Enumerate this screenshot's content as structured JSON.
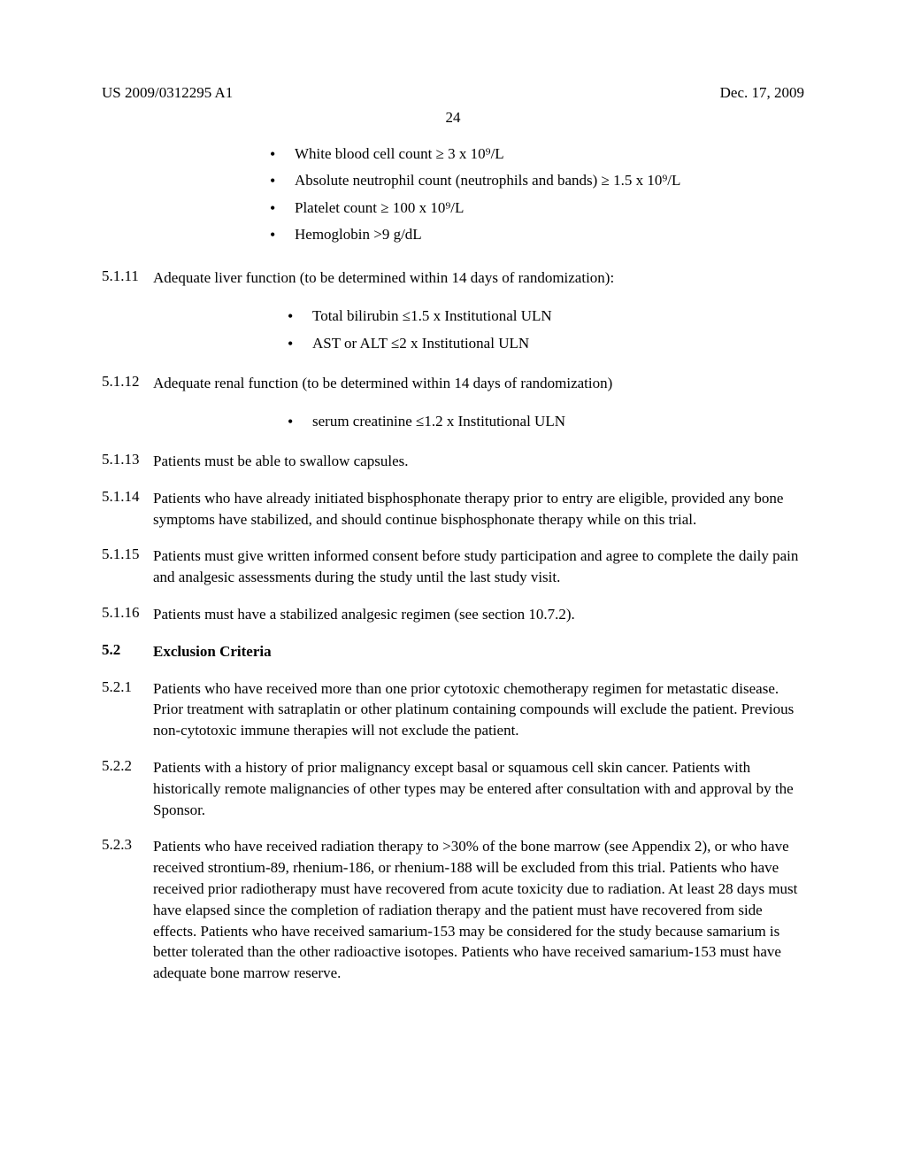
{
  "header": {
    "left": "US 2009/0312295 A1",
    "right": "Dec. 17, 2009",
    "page_number": "24"
  },
  "top_bullets": [
    "White blood cell count ≥ 3 x 10⁹/L",
    "Absolute neutrophil count (neutrophils and bands) ≥ 1.5 x 10⁹/L",
    "Platelet count ≥ 100 x 10⁹/L",
    "Hemoglobin >9 g/dL"
  ],
  "s5111": {
    "num": "5.1.11",
    "text": "Adequate liver function (to be determined within 14 days of randomization):",
    "bullets": [
      "Total bilirubin ≤1.5 x Institutional ULN",
      "AST or ALT ≤2 x Institutional ULN"
    ]
  },
  "s5112": {
    "num": "5.1.12",
    "text": "Adequate renal function (to be determined within 14 days of randomization)",
    "bullets": [
      "serum creatinine ≤1.2 x Institutional ULN"
    ]
  },
  "s5113": {
    "num": "5.1.13",
    "text": "Patients must be able to swallow capsules."
  },
  "s5114": {
    "num": "5.1.14",
    "text": "Patients who have already initiated bisphosphonate therapy prior to entry are eligible, provided any bone symptoms have stabilized, and should continue bisphosphonate therapy while on this trial."
  },
  "s5115": {
    "num": "5.1.15",
    "text": "Patients must give written informed consent before study participation and agree to complete the daily pain and analgesic assessments during the study until the last study visit."
  },
  "s5116": {
    "num": "5.1.16",
    "text": "Patients must have a stabilized analgesic regimen (see section 10.7.2)."
  },
  "s52": {
    "num": "5.2",
    "text": "Exclusion Criteria"
  },
  "s521": {
    "num": "5.2.1",
    "text": "Patients who have received more than one prior cytotoxic chemotherapy regimen for metastatic disease. Prior treatment with satraplatin or other platinum containing compounds will exclude the patient. Previous non-cytotoxic immune therapies will not exclude the patient."
  },
  "s522": {
    "num": "5.2.2",
    "text": "Patients with a history of prior malignancy except basal or squamous cell skin cancer. Patients with historically remote malignancies of other types may be entered after consultation with and approval by the Sponsor."
  },
  "s523": {
    "num": "5.2.3",
    "text": "Patients who have received radiation therapy to >30% of the bone marrow (see Appendix 2), or who have received strontium-89, rhenium-186, or rhenium-188 will be excluded from this trial. Patients who have received prior radiotherapy must have recovered from acute toxicity due to radiation. At least 28 days must have elapsed since the completion of radiation therapy and the patient must have recovered from side effects. Patients who have received samarium-153 may be considered for the study because samarium is better tolerated than the other radioactive isotopes. Patients who have received samarium-153 must have adequate bone marrow reserve."
  }
}
